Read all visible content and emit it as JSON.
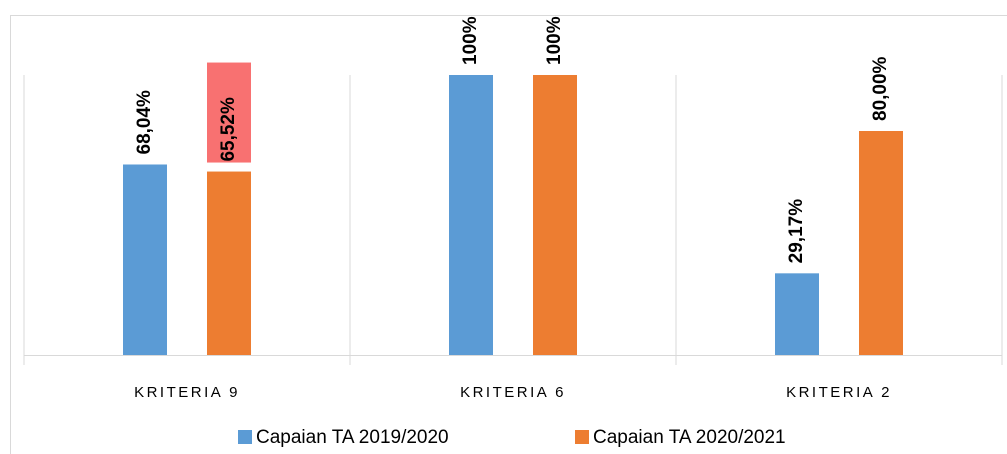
{
  "chart_data": {
    "type": "bar",
    "categories": [
      "KRITERIA 9",
      "KRITERIA 6",
      "KRITERIA 2"
    ],
    "series": [
      {
        "name": "Capaian TA 2019/2020",
        "color": "#5b9bd5",
        "values": [
          68.04,
          100,
          29.17
        ],
        "value_labels": [
          "68,04%",
          "100%",
          "29,17%"
        ]
      },
      {
        "name": "Capaian TA 2020/2021",
        "color": "#ed7d31",
        "values": [
          65.52,
          100,
          80
        ],
        "value_labels": [
          "65,52%",
          "100%",
          "80,00%"
        ],
        "label_backgrounds": [
          "#f87171",
          null,
          null
        ]
      }
    ],
    "ylim": [
      0,
      100
    ],
    "legend": "bottom"
  }
}
